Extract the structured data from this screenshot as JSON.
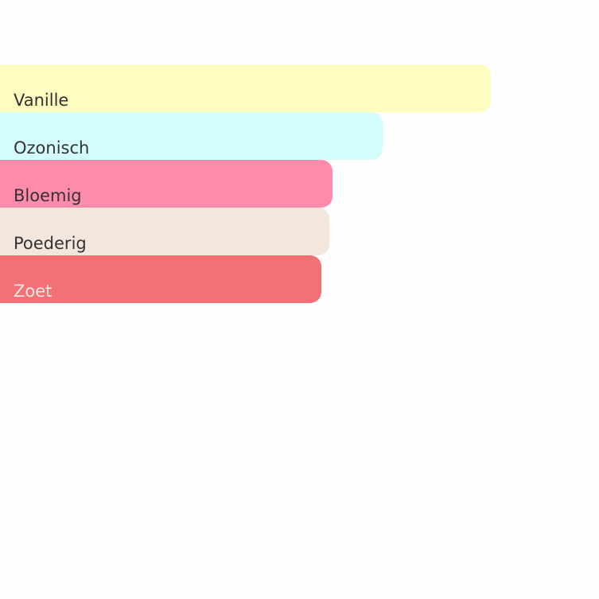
{
  "chart_data": {
    "type": "bar",
    "orientation": "horizontal",
    "categories": [
      "Vanille",
      "Ozonisch",
      "Bloemig",
      "Poederig",
      "Zoet"
    ],
    "values": [
      100,
      78,
      67.7,
      67.1,
      65.5
    ],
    "colors": [
      "#fffcc0",
      "#d2fdfc",
      "#ff8baa",
      "#f3e6dc",
      "#f37174"
    ],
    "label_colors": [
      "#333333",
      "#333333",
      "#333333",
      "#333333",
      "#fde8e8"
    ],
    "xlim": [
      0,
      100
    ],
    "grid": false,
    "legend": "none"
  }
}
